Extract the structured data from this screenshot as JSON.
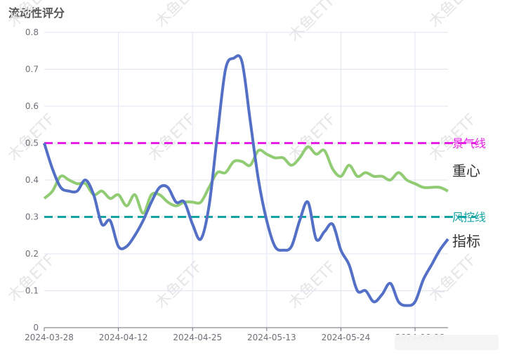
{
  "chart_data": {
    "type": "line",
    "title": "流动性评分",
    "watermark": "木鱼ETF",
    "categories": [
      "2024-03-28",
      null,
      null,
      null,
      null,
      null,
      null,
      null,
      null,
      "2024-04-12",
      null,
      null,
      null,
      null,
      null,
      null,
      null,
      null,
      "2024-04-25",
      null,
      null,
      null,
      null,
      null,
      null,
      null,
      null,
      "2024-05-13",
      null,
      null,
      null,
      null,
      null,
      null,
      null,
      null,
      "2024-05-24",
      null,
      null,
      null,
      null,
      null,
      null,
      null,
      null,
      "2024-06-06",
      null,
      null,
      null,
      null
    ],
    "series": [
      {
        "name": "指标",
        "color": "#5470c6",
        "values": [
          0.5,
          0.43,
          0.38,
          0.37,
          0.37,
          0.4,
          0.36,
          0.28,
          0.29,
          0.22,
          0.22,
          0.25,
          0.29,
          0.34,
          0.38,
          0.38,
          0.34,
          0.34,
          0.28,
          0.24,
          0.33,
          0.52,
          0.7,
          0.73,
          0.72,
          0.56,
          0.4,
          0.29,
          0.22,
          0.21,
          0.22,
          0.29,
          0.34,
          0.24,
          0.26,
          0.28,
          0.21,
          0.17,
          0.1,
          0.1,
          0.07,
          0.09,
          0.12,
          0.07,
          0.06,
          0.07,
          0.13,
          0.17,
          0.21,
          0.24
        ]
      },
      {
        "name": "重心",
        "color": "#91cc75",
        "values": [
          0.35,
          0.37,
          0.41,
          0.4,
          0.39,
          0.39,
          0.36,
          0.37,
          0.35,
          0.36,
          0.33,
          0.36,
          0.31,
          0.36,
          0.36,
          0.34,
          0.33,
          0.34,
          0.34,
          0.34,
          0.38,
          0.42,
          0.42,
          0.45,
          0.45,
          0.44,
          0.48,
          0.47,
          0.46,
          0.46,
          0.44,
          0.46,
          0.49,
          0.47,
          0.48,
          0.43,
          0.41,
          0.44,
          0.41,
          0.42,
          0.41,
          0.41,
          0.4,
          0.42,
          0.4,
          0.39,
          0.38,
          0.38,
          0.38,
          0.37
        ]
      }
    ],
    "reference_lines": [
      {
        "name": "景气线",
        "value": 0.5,
        "color": "#e61ee6"
      },
      {
        "name": "风控线",
        "value": 0.3,
        "color": "#14a3a3"
      }
    ],
    "ylim": [
      0,
      0.8
    ],
    "yticks": [
      0,
      0.1,
      0.2,
      0.3,
      0.4,
      0.5,
      0.6,
      0.7,
      0.8
    ],
    "grid": true
  }
}
